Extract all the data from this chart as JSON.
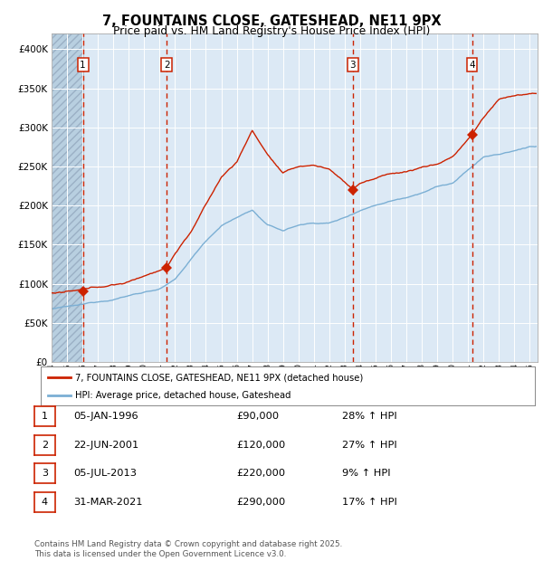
{
  "title": "7, FOUNTAINS CLOSE, GATESHEAD, NE11 9PX",
  "subtitle": "Price paid vs. HM Land Registry's House Price Index (HPI)",
  "hpi_color": "#7bafd4",
  "price_color": "#cc2200",
  "sale_marker_color": "#cc2200",
  "background_color": "#ffffff",
  "plot_bg_color": "#dce9f5",
  "hatch_color": "#b8cfe0",
  "grid_color": "#ffffff",
  "dashed_line_color": "#cc2200",
  "ylim": [
    0,
    420000
  ],
  "yticks": [
    0,
    50000,
    100000,
    150000,
    200000,
    250000,
    300000,
    350000,
    400000
  ],
  "xstart": 1994.0,
  "xend": 2025.5,
  "sales": [
    {
      "num": 1,
      "date": "05-JAN-1996",
      "year": 1996.03,
      "price": 90000,
      "pct": "28%",
      "dir": "↑"
    },
    {
      "num": 2,
      "date": "22-JUN-2001",
      "year": 2001.47,
      "price": 120000,
      "pct": "27%",
      "dir": "↑"
    },
    {
      "num": 3,
      "date": "05-JUL-2013",
      "year": 2013.51,
      "price": 220000,
      "pct": "9%",
      "dir": "↑"
    },
    {
      "num": 4,
      "date": "31-MAR-2021",
      "year": 2021.25,
      "price": 290000,
      "pct": "17%",
      "dir": "↑"
    }
  ],
  "legend_label_price": "7, FOUNTAINS CLOSE, GATESHEAD, NE11 9PX (detached house)",
  "legend_label_hpi": "HPI: Average price, detached house, Gateshead",
  "footer": "Contains HM Land Registry data © Crown copyright and database right 2025.\nThis data is licensed under the Open Government Licence v3.0.",
  "hpi_key_years": [
    1994,
    1995,
    1996,
    1997,
    1998,
    1999,
    2000,
    2001,
    2002,
    2003,
    2004,
    2005,
    2006,
    2007,
    2008,
    2009,
    2010,
    2011,
    2012,
    2013,
    2014,
    2015,
    2016,
    2017,
    2018,
    2019,
    2020,
    2021,
    2022,
    2023,
    2024,
    2025
  ],
  "hpi_key_vals": [
    68000,
    70000,
    72000,
    76000,
    80000,
    85000,
    90000,
    94000,
    105000,
    130000,
    155000,
    175000,
    185000,
    195000,
    175000,
    168000,
    175000,
    178000,
    178000,
    185000,
    195000,
    202000,
    208000,
    213000,
    220000,
    228000,
    232000,
    248000,
    265000,
    268000,
    272000,
    278000
  ],
  "price_key_years": [
    1994,
    1995,
    1996.03,
    1997,
    1999,
    2001.47,
    2002,
    2003,
    2004,
    2005,
    2006,
    2007,
    2008,
    2009,
    2010,
    2011,
    2012,
    2013.51,
    2014,
    2015,
    2016,
    2017,
    2018,
    2019,
    2020,
    2021.25,
    2022,
    2023,
    2024,
    2025
  ],
  "price_key_vals": [
    88000,
    89000,
    90000,
    93000,
    100000,
    120000,
    138000,
    165000,
    200000,
    235000,
    255000,
    295000,
    265000,
    240000,
    248000,
    250000,
    245000,
    220000,
    228000,
    233000,
    240000,
    242000,
    248000,
    252000,
    262000,
    290000,
    312000,
    335000,
    340000,
    342000
  ]
}
